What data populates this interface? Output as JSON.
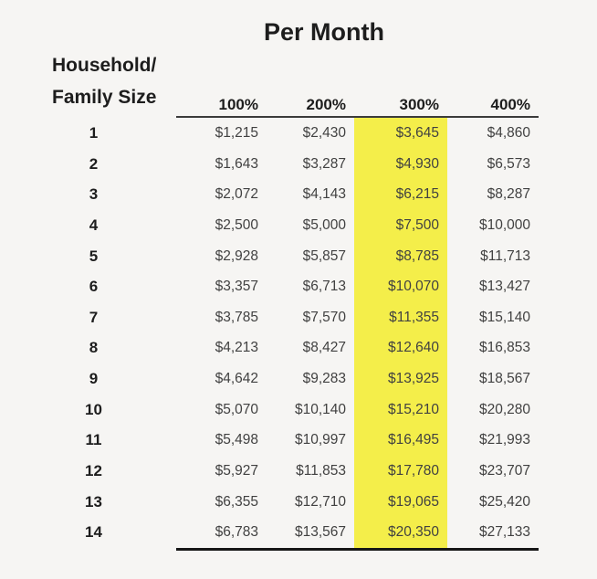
{
  "title": "Per Month",
  "row_header": {
    "line1": "Household/",
    "line2": "Family Size"
  },
  "colors": {
    "highlight": "#f4ee4a",
    "background": "#f6f5f3",
    "text_dark": "#1d1d1d",
    "text_value": "#414141",
    "rule_top": "#3b3b3b",
    "rule_bottom": "#161616"
  },
  "chart_data": {
    "type": "table",
    "title": "Per Month",
    "row_label": "Household/Family Size",
    "columns": [
      "100%",
      "200%",
      "300%",
      "400%"
    ],
    "highlighted_column": "300%",
    "highlight_color": "#f4ee4a",
    "family_sizes": [
      "1",
      "2",
      "3",
      "4",
      "5",
      "6",
      "7",
      "8",
      "9",
      "10",
      "11",
      "12",
      "13",
      "14"
    ],
    "rows": [
      [
        "$1,215",
        "$2,430",
        "$3,645",
        "$4,860"
      ],
      [
        "$1,643",
        "$3,287",
        "$4,930",
        "$6,573"
      ],
      [
        "$2,072",
        "$4,143",
        "$6,215",
        "$8,287"
      ],
      [
        "$2,500",
        "$5,000",
        "$7,500",
        "$10,000"
      ],
      [
        "$2,928",
        "$5,857",
        "$8,785",
        "$11,713"
      ],
      [
        "$3,357",
        "$6,713",
        "$10,070",
        "$13,427"
      ],
      [
        "$3,785",
        "$7,570",
        "$11,355",
        "$15,140"
      ],
      [
        "$4,213",
        "$8,427",
        "$12,640",
        "$16,853"
      ],
      [
        "$4,642",
        "$9,283",
        "$13,925",
        "$18,567"
      ],
      [
        "$5,070",
        "$10,140",
        "$15,210",
        "$20,280"
      ],
      [
        "$5,498",
        "$10,997",
        "$16,495",
        "$21,993"
      ],
      [
        "$5,927",
        "$11,853",
        "$17,780",
        "$23,707"
      ],
      [
        "$6,355",
        "$12,710",
        "$19,065",
        "$25,420"
      ],
      [
        "$6,783",
        "$13,567",
        "$20,350",
        "$27,133"
      ]
    ],
    "values_numeric": [
      [
        1215,
        2430,
        3645,
        4860
      ],
      [
        1643,
        3287,
        4930,
        6573
      ],
      [
        2072,
        4143,
        6215,
        8287
      ],
      [
        2500,
        5000,
        7500,
        10000
      ],
      [
        2928,
        5857,
        8785,
        11713
      ],
      [
        3357,
        6713,
        10070,
        13427
      ],
      [
        3785,
        7570,
        11355,
        15140
      ],
      [
        4213,
        8427,
        12640,
        16853
      ],
      [
        4642,
        9283,
        13925,
        18567
      ],
      [
        5070,
        10140,
        15210,
        20280
      ],
      [
        5498,
        10997,
        16495,
        21993
      ],
      [
        5927,
        11853,
        17780,
        23707
      ],
      [
        6355,
        12710,
        19065,
        25420
      ],
      [
        6783,
        13567,
        20350,
        27133
      ]
    ]
  }
}
